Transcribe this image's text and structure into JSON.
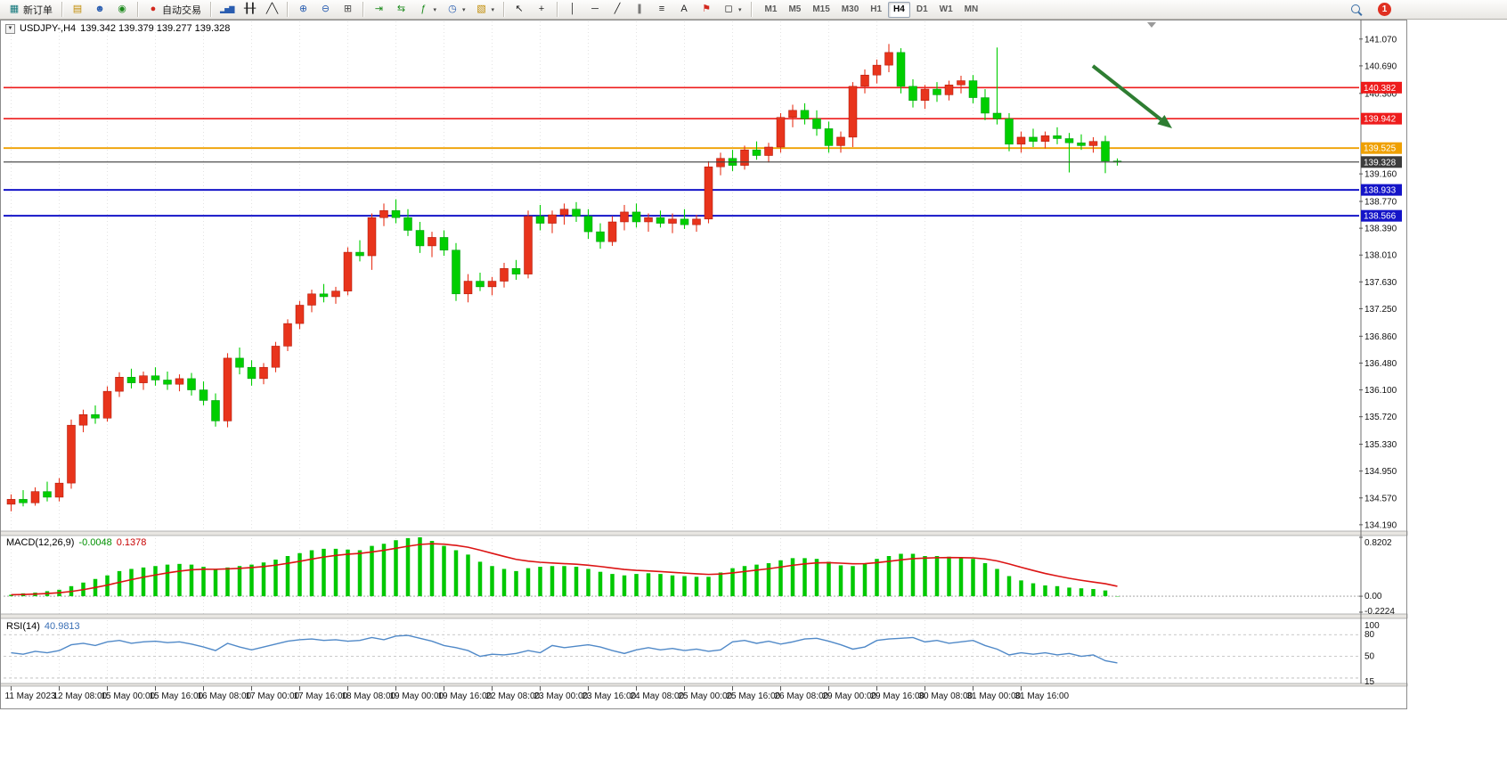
{
  "toolbar": {
    "new_order_label": "新订单",
    "autotrade_label": "自动交易",
    "timeframe_labels": [
      "M1",
      "M5",
      "M15",
      "M30",
      "H1",
      "H4",
      "D1",
      "W1",
      "MN"
    ],
    "active_timeframe": "H4",
    "notification_count": "1"
  },
  "icons": {
    "new_order": "▦",
    "new_chart": "▤",
    "profiles": "☻",
    "data_window": "◉",
    "autotrade": "●",
    "bars": "▂▅▇",
    "candles": "╂╂",
    "line_chart": "╱╲",
    "zoom_in": "⊕",
    "zoom_out": "⊖",
    "tile": "⊞",
    "auto_scroll": "⇥",
    "shift": "⇆",
    "indicators": "ƒ",
    "periods": "◷",
    "template": "▧",
    "cursor": "↖",
    "crosshair": "+",
    "vline": "│",
    "hline": "─",
    "trend": "╱",
    "channel": "∥",
    "fib": "≡",
    "text": "A",
    "label": "⚑",
    "shapes": "◻",
    "dropdown": "▾",
    "collapse": "▼"
  },
  "chart": {
    "symbol_period": "USDJPY-,H4",
    "ohlc_text": "139.342 139.379 139.277 139.328"
  },
  "indicators": {
    "macd_label": "MACD(12,26,9)",
    "macd_main_value": "-0.0048",
    "macd_signal_value": "0.1378",
    "rsi_label": "RSI(14)",
    "rsi_value": "40.9813"
  },
  "colors": {
    "bull": "#e8341c",
    "bull_stroke": "#a81000",
    "bear": "#00ce00",
    "bear_stroke": "#009410",
    "macd_hist": "#00c800",
    "macd_signal": "#dc1414",
    "rsi_line": "#5089c8",
    "arrow": "#2e7d32",
    "level_red": "#ee1c1c",
    "level_orange": "#efa000",
    "level_blue": "#1414c8",
    "bid": "#3c3c3c",
    "grid": "#e3e3e3",
    "axis_text": "#111111"
  },
  "chart_data": {
    "type": "candlestick",
    "symbol": "USDJPY-",
    "timeframe": "H4",
    "last_ohlc": {
      "open": 139.342,
      "high": 139.379,
      "low": 139.277,
      "close": 139.328
    },
    "price_range": [
      134.1,
      141.32
    ],
    "price_axis_ticks": [
      "141.070",
      "140.690",
      "140.300",
      "139.160",
      "138.770",
      "138.390",
      "138.010",
      "137.630",
      "137.250",
      "136.860",
      "136.480",
      "136.100",
      "135.720",
      "135.330",
      "134.950",
      "134.570",
      "134.190"
    ],
    "time_labels": [
      "11 May 2023",
      "12 May 08:00",
      "15 May 00:00",
      "15 May 16:00",
      "16 May 08:00",
      "17 May 00:00",
      "17 May 16:00",
      "18 May 08:00",
      "19 May 00:00",
      "19 May 16:00",
      "22 May 08:00",
      "23 May 00:00",
      "23 May 16:00",
      "24 May 08:00",
      "25 May 00:00",
      "25 May 16:00",
      "26 May 08:00",
      "29 May 00:00",
      "29 May 16:00",
      "30 May 08:00",
      "31 May 00:00",
      "31 May 16:00"
    ],
    "candles_per_label": 4,
    "candles_ohlc": [
      [
        134.48,
        134.62,
        134.38,
        134.55
      ],
      [
        134.55,
        134.68,
        134.45,
        134.5
      ],
      [
        134.5,
        134.72,
        134.46,
        134.66
      ],
      [
        134.66,
        134.8,
        134.52,
        134.58
      ],
      [
        134.58,
        134.85,
        134.52,
        134.78
      ],
      [
        134.78,
        135.68,
        134.7,
        135.6
      ],
      [
        135.6,
        135.82,
        135.5,
        135.75
      ],
      [
        135.75,
        135.88,
        135.62,
        135.7
      ],
      [
        135.7,
        136.15,
        135.65,
        136.08
      ],
      [
        136.08,
        136.35,
        136.0,
        136.28
      ],
      [
        136.28,
        136.4,
        136.12,
        136.2
      ],
      [
        136.2,
        136.36,
        136.1,
        136.3
      ],
      [
        136.3,
        136.42,
        136.16,
        136.24
      ],
      [
        136.24,
        136.36,
        136.1,
        136.18
      ],
      [
        136.18,
        136.32,
        136.08,
        136.26
      ],
      [
        136.26,
        136.34,
        136.02,
        136.1
      ],
      [
        136.1,
        136.22,
        135.88,
        135.95
      ],
      [
        135.95,
        136.05,
        135.58,
        135.66
      ],
      [
        135.66,
        136.62,
        135.57,
        136.55
      ],
      [
        136.55,
        136.7,
        136.32,
        136.42
      ],
      [
        136.42,
        136.52,
        136.16,
        136.26
      ],
      [
        136.26,
        136.48,
        136.18,
        136.42
      ],
      [
        136.42,
        136.78,
        136.35,
        136.72
      ],
      [
        136.72,
        137.1,
        136.65,
        137.04
      ],
      [
        137.04,
        137.36,
        136.96,
        137.3
      ],
      [
        137.3,
        137.52,
        137.2,
        137.46
      ],
      [
        137.46,
        137.6,
        137.34,
        137.42
      ],
      [
        137.42,
        137.56,
        137.32,
        137.5
      ],
      [
        137.5,
        138.12,
        137.44,
        138.05
      ],
      [
        138.05,
        138.22,
        137.92,
        138.0
      ],
      [
        138.0,
        138.6,
        137.8,
        138.54
      ],
      [
        138.54,
        138.74,
        138.42,
        138.64
      ],
      [
        138.64,
        138.8,
        138.46,
        138.54
      ],
      [
        138.54,
        138.66,
        138.28,
        138.36
      ],
      [
        138.36,
        138.48,
        138.04,
        138.14
      ],
      [
        138.14,
        138.34,
        137.98,
        138.26
      ],
      [
        138.26,
        138.36,
        138.0,
        138.08
      ],
      [
        138.08,
        138.18,
        137.36,
        137.46
      ],
      [
        137.46,
        137.74,
        137.34,
        137.64
      ],
      [
        137.64,
        137.76,
        137.5,
        137.56
      ],
      [
        137.56,
        137.7,
        137.44,
        137.64
      ],
      [
        137.64,
        137.9,
        137.55,
        137.82
      ],
      [
        137.82,
        137.94,
        137.66,
        137.74
      ],
      [
        137.74,
        138.64,
        137.68,
        138.56
      ],
      [
        138.56,
        138.72,
        138.36,
        138.46
      ],
      [
        138.46,
        138.64,
        138.32,
        138.58
      ],
      [
        138.58,
        138.74,
        138.44,
        138.66
      ],
      [
        138.66,
        138.76,
        138.48,
        138.56
      ],
      [
        138.56,
        138.66,
        138.24,
        138.34
      ],
      [
        138.34,
        138.46,
        138.1,
        138.2
      ],
      [
        138.2,
        138.56,
        138.14,
        138.48
      ],
      [
        138.48,
        138.72,
        138.36,
        138.62
      ],
      [
        138.62,
        138.74,
        138.4,
        138.48
      ],
      [
        138.48,
        138.6,
        138.34,
        138.54
      ],
      [
        138.54,
        138.64,
        138.4,
        138.46
      ],
      [
        138.46,
        138.6,
        138.32,
        138.52
      ],
      [
        138.52,
        138.66,
        138.38,
        138.44
      ],
      [
        138.44,
        138.58,
        138.34,
        138.52
      ],
      [
        138.52,
        139.34,
        138.46,
        139.26
      ],
      [
        139.26,
        139.46,
        139.14,
        139.38
      ],
      [
        139.38,
        139.5,
        139.2,
        139.28
      ],
      [
        139.28,
        139.56,
        139.22,
        139.5
      ],
      [
        139.5,
        139.62,
        139.36,
        139.42
      ],
      [
        139.42,
        139.6,
        139.32,
        139.54
      ],
      [
        139.54,
        140.02,
        139.46,
        139.96
      ],
      [
        139.96,
        140.14,
        139.82,
        140.06
      ],
      [
        140.06,
        140.16,
        139.86,
        139.94
      ],
      [
        139.94,
        140.06,
        139.7,
        139.8
      ],
      [
        139.8,
        139.9,
        139.46,
        139.56
      ],
      [
        139.56,
        139.76,
        139.46,
        139.68
      ],
      [
        139.68,
        140.46,
        139.54,
        140.4
      ],
      [
        140.4,
        140.64,
        140.3,
        140.56
      ],
      [
        140.56,
        140.78,
        140.44,
        140.7
      ],
      [
        140.7,
        141.0,
        140.6,
        140.88
      ],
      [
        140.88,
        140.94,
        140.3,
        140.4
      ],
      [
        140.4,
        140.5,
        140.1,
        140.2
      ],
      [
        140.2,
        140.42,
        140.08,
        140.36
      ],
      [
        140.36,
        140.46,
        140.18,
        140.28
      ],
      [
        140.28,
        140.48,
        140.2,
        140.42
      ],
      [
        140.42,
        140.55,
        140.3,
        140.48
      ],
      [
        140.48,
        140.56,
        140.16,
        140.24
      ],
      [
        140.24,
        140.36,
        139.92,
        140.02
      ],
      [
        140.02,
        140.95,
        139.86,
        139.94
      ],
      [
        139.94,
        140.02,
        139.48,
        139.58
      ],
      [
        139.58,
        139.76,
        139.46,
        139.68
      ],
      [
        139.68,
        139.8,
        139.54,
        139.62
      ],
      [
        139.62,
        139.76,
        139.52,
        139.7
      ],
      [
        139.7,
        139.82,
        139.58,
        139.66
      ],
      [
        139.66,
        139.74,
        139.18,
        139.6
      ],
      [
        139.6,
        139.72,
        139.5,
        139.56
      ],
      [
        139.56,
        139.68,
        139.46,
        139.62
      ],
      [
        139.62,
        139.7,
        139.17,
        139.34
      ],
      [
        139.342,
        139.379,
        139.277,
        139.328
      ]
    ],
    "horizontal_levels": [
      {
        "price": 140.382,
        "label": "140.382",
        "color_key": "level_red",
        "width": 1.6
      },
      {
        "price": 139.942,
        "label": "139.942",
        "color_key": "level_red",
        "width": 1.6
      },
      {
        "price": 139.525,
        "label": "139.525",
        "color_key": "level_orange",
        "width": 1.8
      },
      {
        "price": 139.328,
        "label": "139.328",
        "color_key": "bid",
        "width": 1.1,
        "role": "bid"
      },
      {
        "price": 138.933,
        "label": "138.933",
        "color_key": "level_blue",
        "width": 2.0
      },
      {
        "price": 138.566,
        "label": "138.566",
        "color_key": "level_blue",
        "width": 2.0
      }
    ],
    "macd": {
      "params": "12,26,9",
      "scale_max": 0.8202,
      "scale_min": -0.2224,
      "axis_ticks": [
        "0.8202",
        "0.00",
        "-0.2224"
      ],
      "values": [
        0.02,
        0.04,
        0.05,
        0.07,
        0.09,
        0.14,
        0.19,
        0.24,
        0.29,
        0.35,
        0.38,
        0.4,
        0.42,
        0.44,
        0.45,
        0.44,
        0.41,
        0.37,
        0.4,
        0.42,
        0.44,
        0.47,
        0.51,
        0.56,
        0.6,
        0.64,
        0.66,
        0.66,
        0.65,
        0.64,
        0.7,
        0.73,
        0.78,
        0.81,
        0.82,
        0.77,
        0.7,
        0.64,
        0.58,
        0.48,
        0.42,
        0.38,
        0.35,
        0.39,
        0.41,
        0.42,
        0.42,
        0.41,
        0.38,
        0.34,
        0.31,
        0.29,
        0.31,
        0.32,
        0.31,
        0.29,
        0.28,
        0.27,
        0.27,
        0.33,
        0.39,
        0.42,
        0.44,
        0.46,
        0.5,
        0.53,
        0.53,
        0.52,
        0.48,
        0.43,
        0.42,
        0.46,
        0.52,
        0.56,
        0.59,
        0.59,
        0.56,
        0.56,
        0.55,
        0.53,
        0.52,
        0.46,
        0.38,
        0.28,
        0.22,
        0.18,
        0.15,
        0.14,
        0.12,
        0.11,
        0.1,
        0.08,
        -0.005
      ]
    },
    "rsi": {
      "params": "14",
      "scale_max": 100,
      "scale_min": 15,
      "axis_ticks": [
        "100",
        "80",
        "50",
        "15"
      ],
      "dashed_levels": [
        80,
        50,
        20
      ],
      "values": [
        55,
        53,
        57,
        55,
        58,
        66,
        68,
        65,
        70,
        72,
        68,
        70,
        71,
        69,
        70,
        67,
        63,
        58,
        68,
        63,
        59,
        63,
        67,
        71,
        73,
        74,
        72,
        73,
        71,
        72,
        76,
        73,
        78,
        79,
        75,
        71,
        65,
        62,
        58,
        50,
        53,
        52,
        54,
        58,
        55,
        65,
        62,
        64,
        66,
        63,
        58,
        54,
        59,
        62,
        59,
        61,
        58,
        60,
        57,
        59,
        70,
        72,
        68,
        71,
        67,
        70,
        74,
        75,
        71,
        66,
        60,
        63,
        72,
        74,
        75,
        76,
        70,
        72,
        68,
        70,
        72,
        65,
        60,
        52,
        55,
        53,
        55,
        52,
        54,
        50,
        52,
        44,
        40.98
      ]
    },
    "annotation_arrow": {
      "from": [
        1227,
        74
      ],
      "to": [
        1316,
        144
      ]
    }
  }
}
